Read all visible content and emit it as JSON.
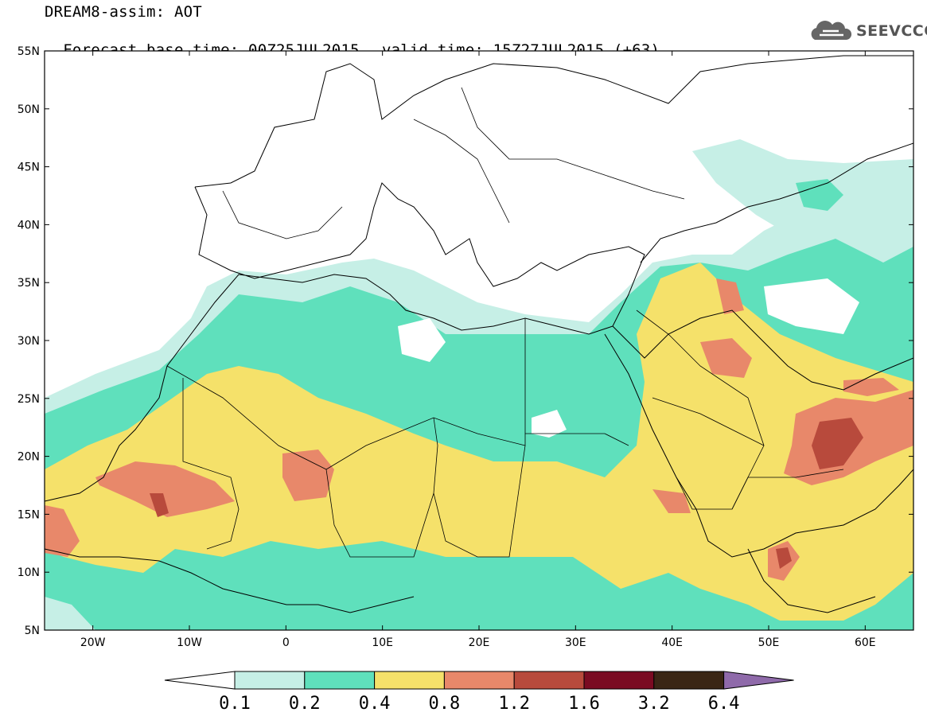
{
  "header": {
    "title": "DREAM8-assim: AOT",
    "base_time": "Forecast base time: 00Z25JUL2015",
    "valid_time": "valid time: 15Z27JUL2015 (+63)"
  },
  "logo": {
    "text": "SEEVCCC",
    "icon": "cloud-icon"
  },
  "map": {
    "lon_range": [
      -25,
      65
    ],
    "lat_range": [
      5,
      55
    ],
    "lat_ticks": [
      "55N",
      "50N",
      "45N",
      "40N",
      "35N",
      "30N",
      "25N",
      "20N",
      "15N",
      "10N",
      "5N"
    ],
    "lon_ticks": [
      "20W",
      "10W",
      "0",
      "10E",
      "20E",
      "30E",
      "40E",
      "50E",
      "60E"
    ],
    "field": "AOT"
  },
  "colorbar": {
    "labels": [
      "0.1",
      "0.2",
      "0.4",
      "0.8",
      "1.2",
      "1.6",
      "3.2",
      "6.4"
    ],
    "colors": [
      "#ffffff",
      "#c6efe6",
      "#5fe0bc",
      "#f5e16a",
      "#e8886a",
      "#b84a3c",
      "#7a0b22",
      "#3a2615",
      "#8f6aaa"
    ]
  }
}
